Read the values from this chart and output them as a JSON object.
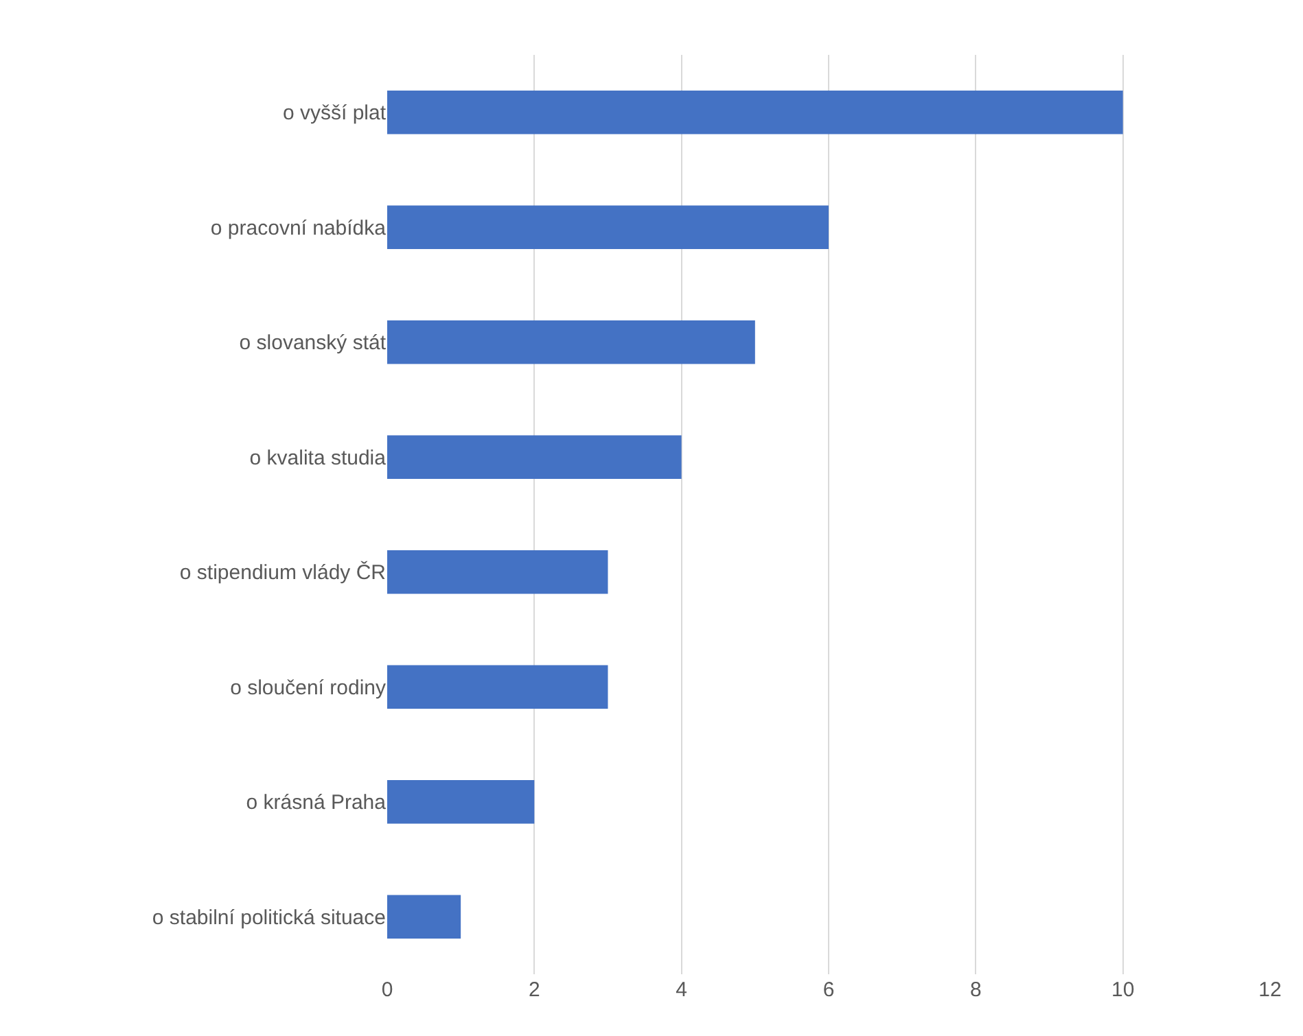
{
  "chart_data": {
    "type": "bar",
    "orientation": "horizontal",
    "categories": [
      "o vyšší plat",
      "o pracovní nabídka",
      "o slovanský stát",
      "o kvalita studia",
      "o stipendium vlády ČR",
      "o sloučení rodiny",
      "o krásná Praha",
      "o stabilní politická situace"
    ],
    "values": [
      10,
      6,
      5,
      4,
      3,
      3,
      2,
      1
    ],
    "color": "#4472c4",
    "xlim": [
      0,
      12
    ],
    "xticks": [
      0,
      2,
      4,
      6,
      8,
      10,
      12
    ],
    "grid": "x"
  }
}
